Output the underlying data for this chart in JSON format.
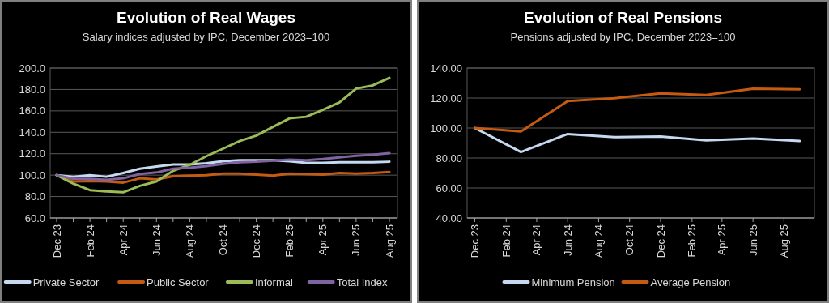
{
  "chart_data": [
    {
      "type": "line",
      "title": "Evolution of Real Wages",
      "subtitle": "Salary indices adjusted by IPC, December 2023=100",
      "categories": [
        "Dec 23",
        null,
        "Feb 24",
        null,
        "Apr 24",
        null,
        "Jun 24",
        null,
        "Aug 24",
        null,
        "Oct 24",
        null,
        "Dec 24",
        null,
        "Feb 25",
        null,
        "Apr 25",
        null,
        "Jun 25",
        null,
        "Aug 25"
      ],
      "series": [
        {
          "name": "Private Sector",
          "color": "#c5d9f1",
          "values": [
            100,
            98.5,
            100,
            98.5,
            102,
            106,
            108,
            110,
            110,
            111,
            113,
            114,
            114,
            114,
            113,
            111.5,
            111.5,
            112,
            112,
            112,
            112.5
          ]
        },
        {
          "name": "Public Sector",
          "color": "#c55a11",
          "values": [
            100,
            94,
            94.5,
            94,
            93,
            97,
            96,
            99,
            99.5,
            100,
            101.5,
            101.5,
            100.5,
            99.5,
            101.5,
            101,
            100.5,
            102,
            101.5,
            102,
            103
          ]
        },
        {
          "name": "Informal",
          "color": "#9bbb59",
          "values": [
            100,
            92,
            86,
            84.7,
            84,
            90,
            94,
            104,
            109.6,
            117.7,
            124.7,
            131.8,
            136.9,
            145,
            153,
            154.5,
            161,
            168,
            180.8,
            183.8,
            190.9
          ]
        },
        {
          "name": "Total Index",
          "color": "#8064a2",
          "values": [
            100,
            96.5,
            96.5,
            95.5,
            97,
            101,
            102.5,
            106,
            107,
            108.5,
            110.5,
            112,
            112.5,
            113.5,
            114.5,
            114,
            115,
            116.5,
            118,
            119,
            120.5
          ]
        }
      ],
      "ylim": [
        60,
        200
      ],
      "yticks": [
        {
          "value": 60,
          "label": "60.0"
        },
        {
          "value": 80,
          "label": "80.0"
        },
        {
          "value": 100,
          "label": "100.0"
        },
        {
          "value": 120,
          "label": "120.0"
        },
        {
          "value": 140,
          "label": "140.0"
        },
        {
          "value": 160,
          "label": "160.0"
        },
        {
          "value": 180,
          "label": "180.0"
        },
        {
          "value": 200,
          "label": "200.0"
        }
      ],
      "grid": "y",
      "legend": "bottom",
      "marker": "none",
      "line_style": "solid"
    },
    {
      "type": "line",
      "title": "Evolution of Real Pensions",
      "subtitle": "Pensions adjusted by IPC, December 2023=100",
      "x": [
        "2023-12",
        "2024-03",
        "2024-06",
        "2024-09",
        "2024-12",
        "2025-03",
        "2025-06",
        "2025-09"
      ],
      "series": [
        {
          "name": "Minimum Pension",
          "color": "#c5d9f1",
          "values": [
            100,
            84,
            96,
            93.9,
            94.3,
            91.7,
            93,
            91.3
          ]
        },
        {
          "name": "Average Pension",
          "color": "#c55a11",
          "values": [
            100,
            97.7,
            118,
            119.9,
            123.1,
            122,
            126.2,
            125.8
          ]
        }
      ],
      "xlim": [
        "2023-11-16",
        "2025-09-30"
      ],
      "xticks": [
        {
          "value": "2023-12",
          "label": "Dec 23"
        },
        {
          "value": "2024-02",
          "label": "Feb 24"
        },
        {
          "value": "2024-04",
          "label": "Apr 24"
        },
        {
          "value": "2024-06",
          "label": "Jun 24"
        },
        {
          "value": "2024-08",
          "label": "Aug 24"
        },
        {
          "value": "2024-10",
          "label": "Oct 24"
        },
        {
          "value": "2024-12",
          "label": "Dec 24"
        },
        {
          "value": "2025-02",
          "label": "Feb 25"
        },
        {
          "value": "2025-04",
          "label": "Apr 25"
        },
        {
          "value": "2025-06",
          "label": "Jun 25"
        },
        {
          "value": "2025-08",
          "label": "Aug 25"
        }
      ],
      "ylim": [
        40,
        140
      ],
      "yticks": [
        {
          "value": 40,
          "label": "40.00"
        },
        {
          "value": 60,
          "label": "60.00"
        },
        {
          "value": 80,
          "label": "80.00"
        },
        {
          "value": 100,
          "label": "100.00"
        },
        {
          "value": 120,
          "label": "120.00"
        },
        {
          "value": 140,
          "label": "140.00"
        }
      ],
      "grid": "y",
      "legend": "bottom",
      "marker": "none",
      "line_style": "solid"
    }
  ]
}
